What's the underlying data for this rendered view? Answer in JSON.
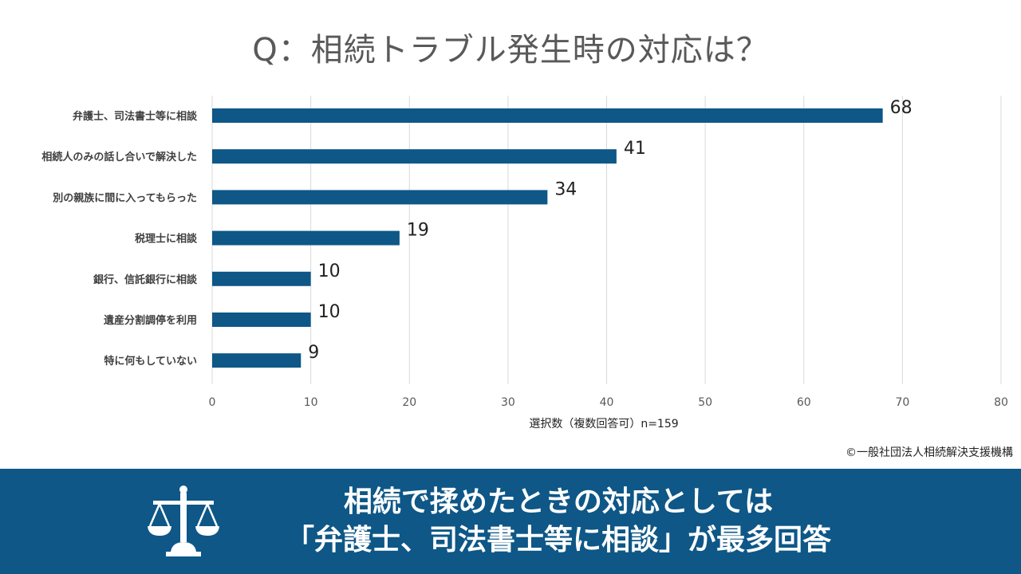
{
  "title": "Q：相続トラブル発生時の対応は？",
  "chart_data": {
    "type": "bar",
    "orientation": "horizontal",
    "categories": [
      "弁護士、司法書士等に相談",
      "相続人のみの話し合いで解決した",
      "別の親族に間に入ってもらった",
      "税理士に相談",
      "銀行、信託銀行に相談",
      "遺産分割調停を利用",
      "特に何もしていない"
    ],
    "values": [
      68,
      41,
      34,
      19,
      10,
      10,
      9
    ],
    "xlim": [
      0,
      80
    ],
    "xticks": [
      0,
      10,
      20,
      30,
      40,
      50,
      60,
      70,
      80
    ],
    "xlabel": "選択数（複数回答可）n=159",
    "grid": true,
    "bar_color": "#0e5787"
  },
  "source": "©一般社団法人相続解決支援機構",
  "banner": {
    "line1": "相続で揉めたときの対応としては",
    "line2": "「弁護士、司法書士等に相談」が最多回答",
    "icon": "scales-icon",
    "background": "#0e5787"
  }
}
